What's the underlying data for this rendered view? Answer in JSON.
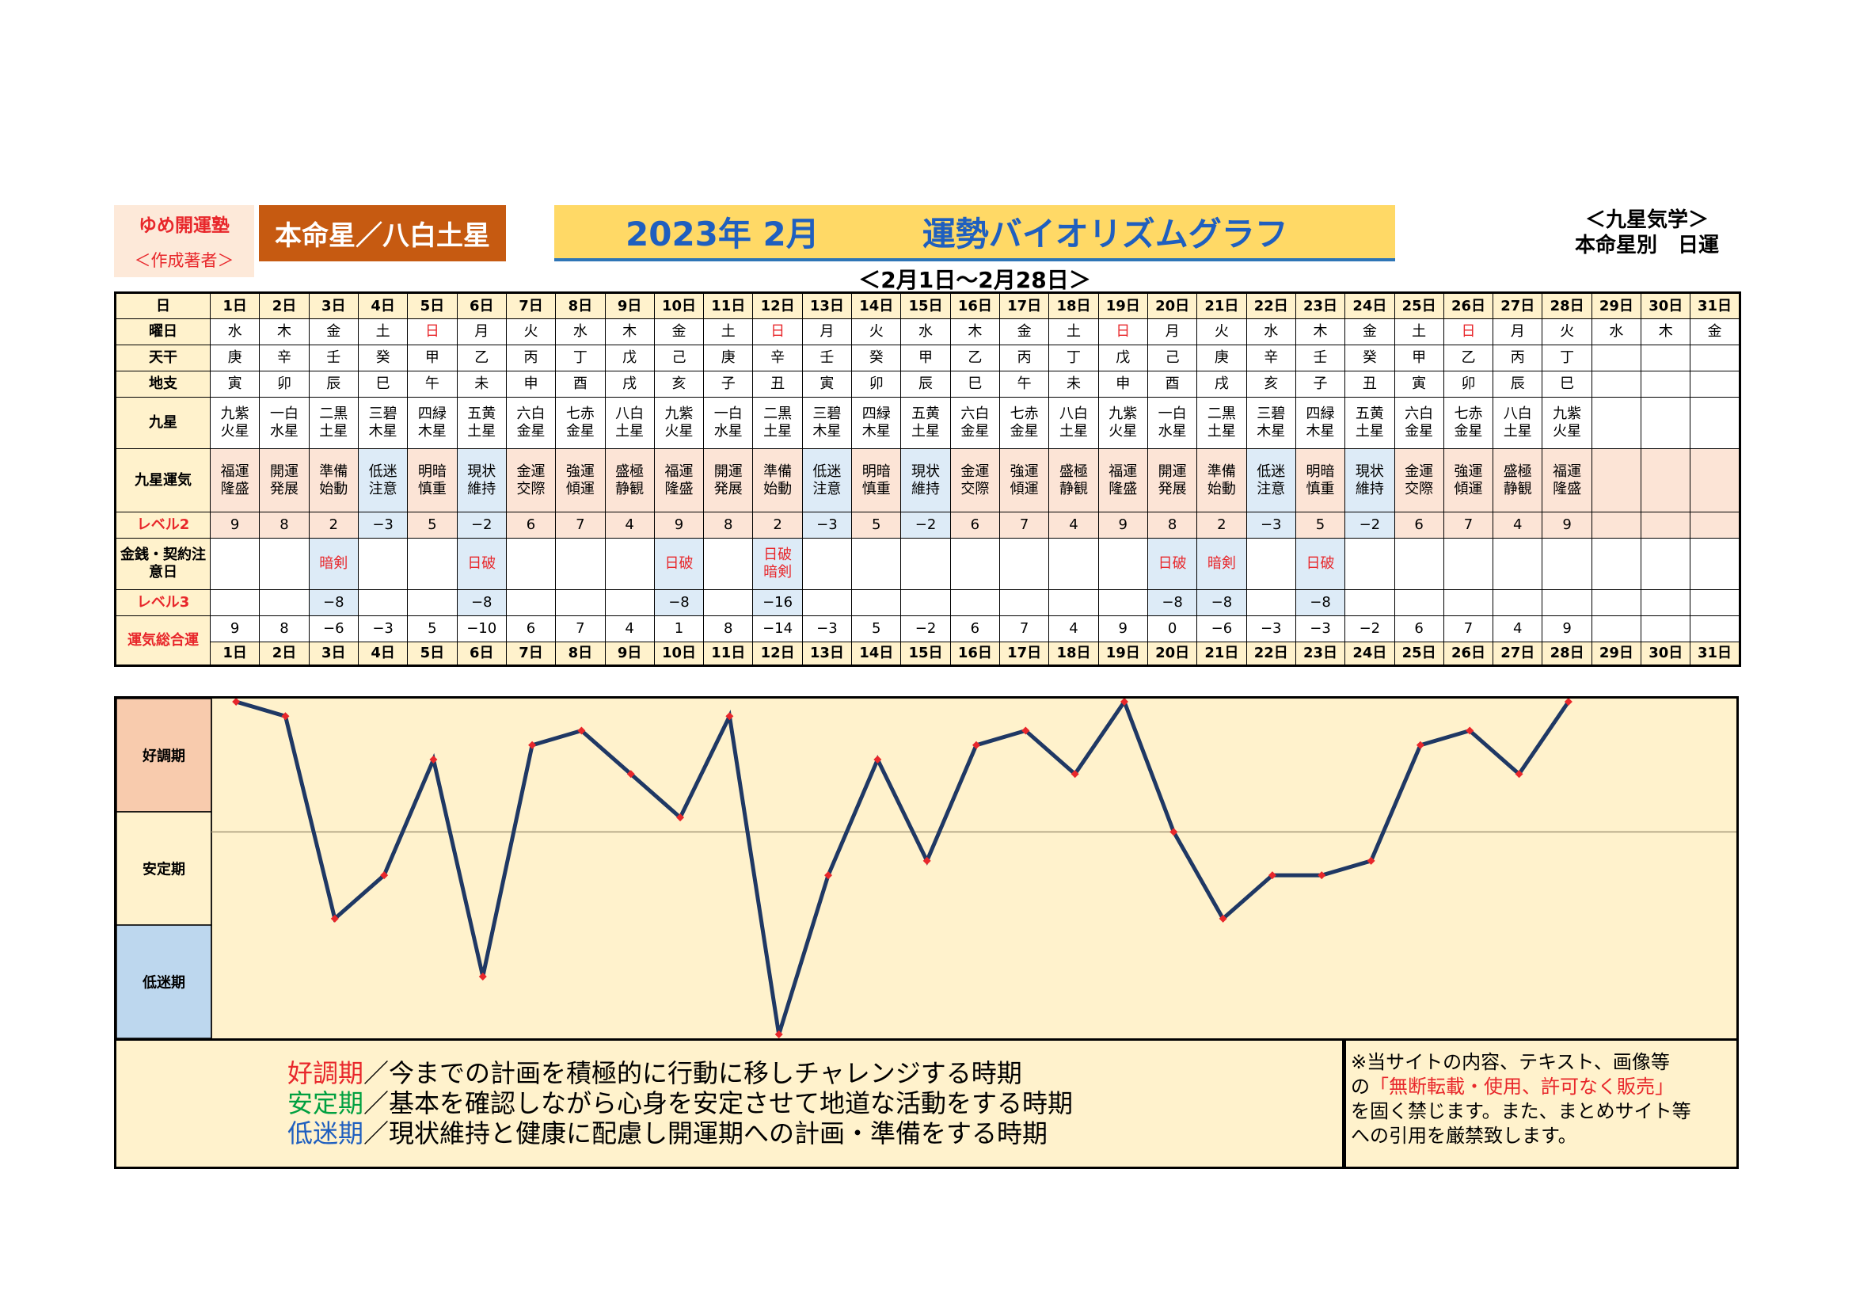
{
  "header": {
    "org_name": "ゆめ開運塾",
    "org_sub": "＜作成著者＞",
    "star_label": "本命星／八白土星",
    "title_year_month": "2023年 2月",
    "title_main": "運勢バイオリズムグラフ",
    "date_range": "＜2月1日～2月28日＞",
    "corner_line1": "＜九星気学＞",
    "corner_line2": "本命星別　日運"
  },
  "row_labels": {
    "day": "日",
    "weekday": "曜日",
    "tenkan": "天干",
    "chishi": "地支",
    "kyusei": "九星",
    "unki": "九星運気",
    "level2": "レベル2",
    "kinsen": "金銭・契約注意日",
    "level3": "レベル3",
    "sogo": "運気総合運"
  },
  "days": [
    "1日",
    "2日",
    "3日",
    "4日",
    "5日",
    "6日",
    "7日",
    "8日",
    "9日",
    "10日",
    "11日",
    "12日",
    "13日",
    "14日",
    "15日",
    "16日",
    "17日",
    "18日",
    "19日",
    "20日",
    "21日",
    "22日",
    "23日",
    "24日",
    "25日",
    "26日",
    "27日",
    "28日",
    "29日",
    "30日",
    "31日"
  ],
  "weekdays": [
    "水",
    "木",
    "金",
    "土",
    "日",
    "月",
    "火",
    "水",
    "木",
    "金",
    "土",
    "日",
    "月",
    "火",
    "水",
    "木",
    "金",
    "土",
    "日",
    "月",
    "火",
    "水",
    "木",
    "金",
    "土",
    "日",
    "月",
    "火",
    "水",
    "木",
    "金"
  ],
  "tenkan": [
    "庚",
    "辛",
    "壬",
    "癸",
    "甲",
    "乙",
    "丙",
    "丁",
    "戊",
    "己",
    "庚",
    "辛",
    "壬",
    "癸",
    "甲",
    "乙",
    "丙",
    "丁",
    "戊",
    "己",
    "庚",
    "辛",
    "壬",
    "癸",
    "甲",
    "乙",
    "丙",
    "丁",
    "",
    "",
    ""
  ],
  "chishi": [
    "寅",
    "卯",
    "辰",
    "巳",
    "午",
    "未",
    "申",
    "酉",
    "戌",
    "亥",
    "子",
    "丑",
    "寅",
    "卯",
    "辰",
    "巳",
    "午",
    "未",
    "申",
    "酉",
    "戌",
    "亥",
    "子",
    "丑",
    "寅",
    "卯",
    "辰",
    "巳",
    "",
    "",
    ""
  ],
  "kyusei": [
    [
      "九紫",
      "火星"
    ],
    [
      "一白",
      "水星"
    ],
    [
      "二黒",
      "土星"
    ],
    [
      "三碧",
      "木星"
    ],
    [
      "四緑",
      "木星"
    ],
    [
      "五黄",
      "土星"
    ],
    [
      "六白",
      "金星"
    ],
    [
      "七赤",
      "金星"
    ],
    [
      "八白",
      "土星"
    ],
    [
      "九紫",
      "火星"
    ],
    [
      "一白",
      "水星"
    ],
    [
      "二黒",
      "土星"
    ],
    [
      "三碧",
      "木星"
    ],
    [
      "四緑",
      "木星"
    ],
    [
      "五黄",
      "土星"
    ],
    [
      "六白",
      "金星"
    ],
    [
      "七赤",
      "金星"
    ],
    [
      "八白",
      "土星"
    ],
    [
      "九紫",
      "火星"
    ],
    [
      "一白",
      "水星"
    ],
    [
      "二黒",
      "土星"
    ],
    [
      "三碧",
      "木星"
    ],
    [
      "四緑",
      "木星"
    ],
    [
      "五黄",
      "土星"
    ],
    [
      "六白",
      "金星"
    ],
    [
      "七赤",
      "金星"
    ],
    [
      "八白",
      "土星"
    ],
    [
      "九紫",
      "火星"
    ],
    [
      "",
      ""
    ],
    [
      "",
      ""
    ],
    [
      "",
      ""
    ]
  ],
  "unki": [
    [
      "福運",
      "隆盛"
    ],
    [
      "開運",
      "発展"
    ],
    [
      "準備",
      "始動"
    ],
    [
      "低迷",
      "注意"
    ],
    [
      "明暗",
      "慎重"
    ],
    [
      "現状",
      "維持"
    ],
    [
      "金運",
      "交際"
    ],
    [
      "強運",
      "傾運"
    ],
    [
      "盛極",
      "静観"
    ],
    [
      "福運",
      "隆盛"
    ],
    [
      "開運",
      "発展"
    ],
    [
      "準備",
      "始動"
    ],
    [
      "低迷",
      "注意"
    ],
    [
      "明暗",
      "慎重"
    ],
    [
      "現状",
      "維持"
    ],
    [
      "金運",
      "交際"
    ],
    [
      "強運",
      "傾運"
    ],
    [
      "盛極",
      "静観"
    ],
    [
      "福運",
      "隆盛"
    ],
    [
      "開運",
      "発展"
    ],
    [
      "準備",
      "始動"
    ],
    [
      "低迷",
      "注意"
    ],
    [
      "明暗",
      "慎重"
    ],
    [
      "現状",
      "維持"
    ],
    [
      "金運",
      "交際"
    ],
    [
      "強運",
      "傾運"
    ],
    [
      "盛極",
      "静観"
    ],
    [
      "福運",
      "隆盛"
    ],
    [
      "",
      ""
    ],
    [
      "",
      ""
    ],
    [
      "",
      ""
    ]
  ],
  "level2": [
    "9",
    "8",
    "2",
    "−3",
    "5",
    "−2",
    "6",
    "7",
    "4",
    "9",
    "8",
    "2",
    "−3",
    "5",
    "−2",
    "6",
    "7",
    "4",
    "9",
    "8",
    "2",
    "−3",
    "5",
    "−2",
    "6",
    "7",
    "4",
    "9",
    "",
    "",
    ""
  ],
  "kinsen": [
    [],
    [],
    [
      "暗剣"
    ],
    [],
    [],
    [
      "日破"
    ],
    [],
    [],
    [],
    [
      "日破"
    ],
    [],
    [
      "日破",
      "暗剣"
    ],
    [],
    [],
    [],
    [],
    [],
    [],
    [],
    [
      "日破"
    ],
    [
      "暗剣"
    ],
    [],
    [
      "日破"
    ],
    [],
    [],
    [],
    [],
    [],
    [],
    [],
    []
  ],
  "level3": [
    "",
    "",
    "−8",
    "",
    "",
    "−8",
    "",
    "",
    "",
    "−8",
    "",
    "−16",
    "",
    "",
    "",
    "",
    "",
    "",
    "",
    "−8",
    "−8",
    "",
    "−8",
    "",
    "",
    "",
    "",
    "",
    "",
    "",
    ""
  ],
  "sogo": [
    "9",
    "8",
    "−6",
    "−3",
    "5",
    "−10",
    "6",
    "7",
    "4",
    "1",
    "8",
    "−14",
    "−3",
    "5",
    "−2",
    "6",
    "7",
    "4",
    "9",
    "0",
    "−6",
    "−3",
    "−3",
    "−2",
    "6",
    "7",
    "4",
    "9",
    "",
    "",
    ""
  ],
  "colors": {
    "label_bg": "#fff2cc",
    "header_orange": "#c65a11",
    "title_yellow": "#ffd966",
    "title_blue": "#1f5fbf",
    "sunday_red": "#e8272b",
    "good_band": "#f8cbad",
    "stable_band": "#fff2cc",
    "low_band": "#bdd7ee",
    "unki_row_bg": "#fce4d6",
    "warn_cell_bg": "#ddebf7",
    "line_navy": "#1f3864",
    "point_red": "#e8272b",
    "plot_bg": "#fff2cc"
  },
  "chart_data": {
    "type": "line",
    "title": "2023年 2月　運勢バイオリズムグラフ",
    "x": [
      "1日",
      "2日",
      "3日",
      "4日",
      "5日",
      "6日",
      "7日",
      "8日",
      "9日",
      "10日",
      "11日",
      "12日",
      "13日",
      "14日",
      "15日",
      "16日",
      "17日",
      "18日",
      "19日",
      "20日",
      "21日",
      "22日",
      "23日",
      "24日",
      "25日",
      "26日",
      "27日",
      "28日"
    ],
    "series": [
      {
        "values": [
          9,
          8,
          -6,
          -3,
          5,
          -10,
          6,
          7,
          4,
          1,
          8,
          -14,
          -3,
          5,
          -2,
          6,
          7,
          4,
          9,
          0,
          -6,
          -3,
          -3,
          -2,
          6,
          7,
          4,
          9
        ]
      }
    ],
    "ylim": [
      -14,
      9
    ],
    "bands": [
      "好調期",
      "安定期",
      "低迷期"
    ],
    "grid": false,
    "legend": "none"
  },
  "legend": {
    "good_kw": "好調期",
    "good_text": "／今までの計画を積極的に行動に移しチャレンジする時期",
    "stable_kw": "安定期",
    "stable_text": "／基本を確認しながら心身を安定させて地道な活動をする時期",
    "low_kw": "低迷期",
    "low_text": "／現状維持と健康に配慮し開運期への計画・準備をする時期"
  },
  "notice": {
    "line1": "※当サイトの内容、テキスト、画像等",
    "line2_a": "の",
    "line2_red": "「無断転載・使用、許可なく販売」",
    "line3": "を固く禁じます。また、まとめサイト等",
    "line4": "への引用を厳禁致します。"
  }
}
